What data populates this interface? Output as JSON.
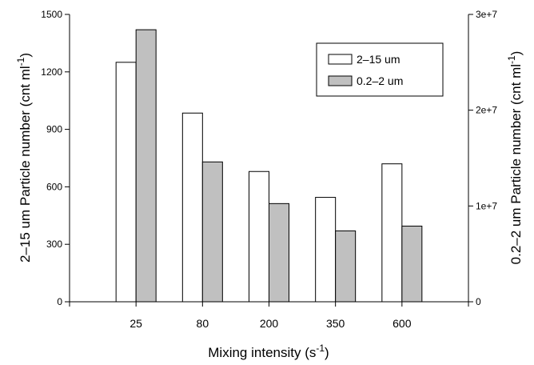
{
  "chart_data": {
    "type": "bar",
    "categories": [
      "25",
      "80",
      "200",
      "350",
      "600"
    ],
    "xlabel": "Mixing intensity (s",
    "xlabel_exp": "-1",
    "xlabel_end": ")",
    "ylabel": "2–15 um Particle number (cnt ml",
    "ylabel_exp": "-1",
    "ylabel_end": ")",
    "y2label": "0.2–2 um Particle number (cnt ml",
    "y2label_exp": "-1",
    "y2label_end": ")",
    "ylim": [
      0,
      1500
    ],
    "y2lim": [
      0,
      30000000
    ],
    "yticks": [
      "0",
      "300",
      "600",
      "900",
      "1200",
      "1500"
    ],
    "y2ticks": [
      "0",
      "1e+7",
      "2e+7",
      "3e+7"
    ],
    "legend_position": "top-right",
    "grid": false,
    "series": [
      {
        "name": "2–15 um",
        "axis": "left",
        "color": "#ffffff",
        "values": [
          1250,
          985,
          680,
          545,
          720
        ]
      },
      {
        "name": "0.2–2 um",
        "axis": "right",
        "color": "#c0c0c0",
        "values": [
          28400000,
          14600000,
          10250000,
          7400000,
          7900000
        ]
      }
    ]
  }
}
